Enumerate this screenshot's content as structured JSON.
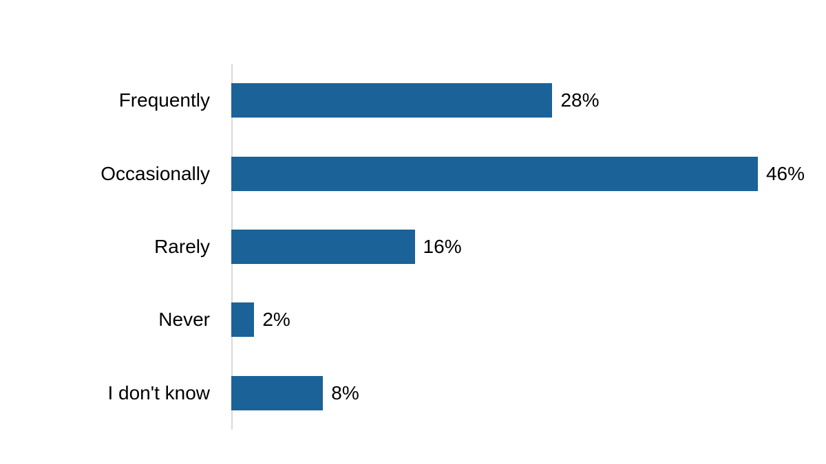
{
  "chart_data": {
    "type": "bar",
    "orientation": "horizontal",
    "title": "",
    "xlabel": "",
    "ylabel": "",
    "categories": [
      "Frequently",
      "Occasionally",
      "Rarely",
      "Never",
      "I don't know"
    ],
    "values": [
      28,
      46,
      16,
      2,
      8
    ],
    "data_labels": [
      "28%",
      "46%",
      "16%",
      "2%",
      "8%"
    ],
    "xlim": [
      0,
      50
    ],
    "grid": false,
    "legend": false,
    "bar_color": "#1B6298",
    "axis_line_color": "#D9D9D9",
    "text_color": "#000000"
  }
}
